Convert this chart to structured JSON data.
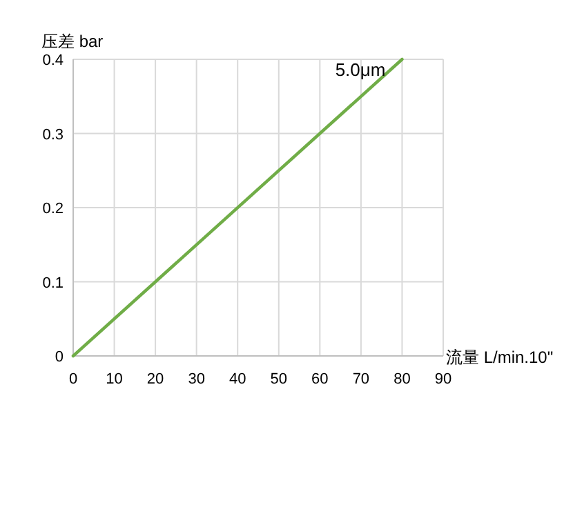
{
  "chart_data": {
    "type": "line",
    "xlabel": "流量  L/min.10\"",
    "ylabel": "压差 bar",
    "x": [
      0,
      80
    ],
    "series": [
      {
        "name": "5.0μm",
        "color": "#70ad47",
        "values": [
          0,
          0.4
        ]
      }
    ],
    "xlim": [
      0,
      90
    ],
    "xticks": [
      0,
      10,
      20,
      30,
      40,
      50,
      60,
      70,
      80,
      90
    ],
    "ylim": [
      0,
      0.4
    ],
    "yticks": [
      0,
      0.1,
      0.2,
      0.3,
      0.4
    ],
    "grid": true,
    "marker": "none",
    "line_style": "solid",
    "legend": false
  }
}
